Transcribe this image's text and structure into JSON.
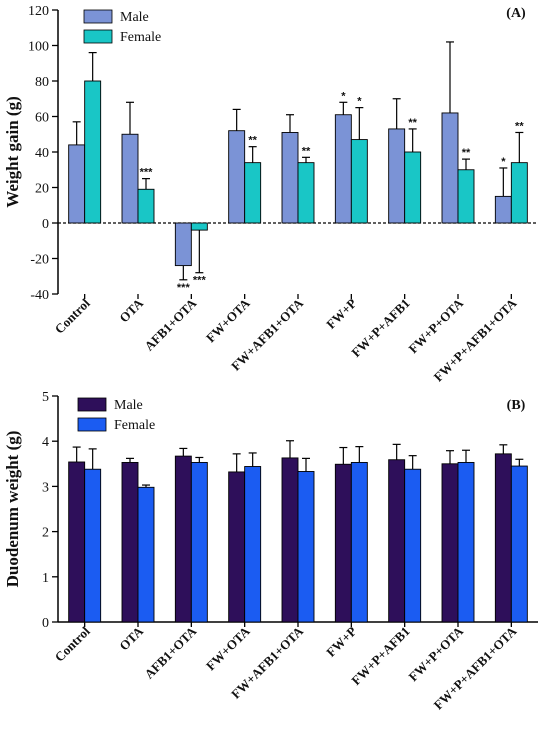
{
  "chart_data": [
    {
      "type": "bar",
      "panel_label": "(A)",
      "ylabel": "Weight gain (g)",
      "ylim": [
        -40,
        120
      ],
      "yticks": [
        -40,
        -20,
        0,
        20,
        40,
        60,
        80,
        100,
        120
      ],
      "grid": false,
      "zero_line": "dashed",
      "legend_position": "top-left",
      "categories": [
        "Control",
        "OTA",
        "AFB1+OTA",
        "FW+OTA",
        "FW+AFB1+OTA",
        "FW+P",
        "FW+P+AFB1",
        "FW+P+OTA",
        "FW+P+AFB1+OTA"
      ],
      "series": [
        {
          "name": "Male",
          "color": "#7b93d6",
          "values": [
            44,
            50,
            -24,
            52,
            51,
            61,
            53,
            62,
            15
          ],
          "errors": [
            13,
            18,
            8,
            12,
            10,
            7,
            17,
            40,
            16
          ],
          "significance": [
            "",
            "",
            "***",
            "",
            "",
            "*",
            "",
            "",
            "*"
          ]
        },
        {
          "name": "Female",
          "color": "#19c6c6",
          "values": [
            80,
            19,
            -4,
            34,
            34,
            47,
            40,
            30,
            34
          ],
          "errors": [
            16,
            6,
            24,
            9,
            3,
            18,
            13,
            6,
            17
          ],
          "significance": [
            "",
            "***",
            "***",
            "**",
            "**",
            "*",
            "**",
            "**",
            "**"
          ]
        }
      ]
    },
    {
      "type": "bar",
      "panel_label": "(B)",
      "ylabel": "Duodenum weight (g)",
      "ylim": [
        0,
        5
      ],
      "yticks": [
        0,
        1,
        2,
        3,
        4,
        5
      ],
      "grid": false,
      "legend_position": "top-left",
      "categories": [
        "Control",
        "OTA",
        "AFB1+OTA",
        "FW+OTA",
        "FW+AFB1+OTA",
        "FW+P",
        "FW+P+AFB1",
        "FW+P+OTA",
        "FW+P+AFB1+OTA"
      ],
      "series": [
        {
          "name": "Male",
          "color": "#2e0f5a",
          "values": [
            3.54,
            3.53,
            3.67,
            3.32,
            3.63,
            3.49,
            3.59,
            3.5,
            3.72
          ],
          "errors": [
            0.33,
            0.09,
            0.17,
            0.4,
            0.38,
            0.37,
            0.34,
            0.29,
            0.2
          ]
        },
        {
          "name": "Female",
          "color": "#1b5cf2",
          "values": [
            3.38,
            2.98,
            3.53,
            3.44,
            3.33,
            3.53,
            3.38,
            3.53,
            3.45
          ],
          "errors": [
            0.45,
            0.05,
            0.11,
            0.3,
            0.29,
            0.35,
            0.3,
            0.27,
            0.15
          ]
        }
      ]
    }
  ]
}
